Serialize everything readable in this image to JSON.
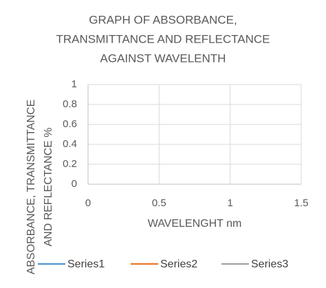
{
  "chart_data": {
    "type": "scatter",
    "title": [
      "GRAPH OF ABSORBANCE,",
      "TRANSMITTANCE AND REFLECTANCE",
      "AGAINST WAVELENTH"
    ],
    "x_label": "WAVELENGHT nm",
    "y_label": [
      "ABSORBANCE, TRANSMITTANCE",
      "AND REFLECTANCE %"
    ],
    "x": [],
    "series": [
      {
        "name": "Series1",
        "color": "#5b9bd5",
        "values": []
      },
      {
        "name": "Series2",
        "color": "#ed7d31",
        "values": []
      },
      {
        "name": "Series3",
        "color": "#a5a5a5",
        "values": []
      }
    ],
    "xlim": [
      0,
      1.5
    ],
    "xticks": [
      0,
      0.5,
      1,
      1.5
    ],
    "ylim": [
      0,
      1
    ],
    "yticks": [
      0,
      0.2,
      0.4,
      0.6,
      0.8,
      1
    ],
    "grid": true,
    "legend": "bottom"
  }
}
